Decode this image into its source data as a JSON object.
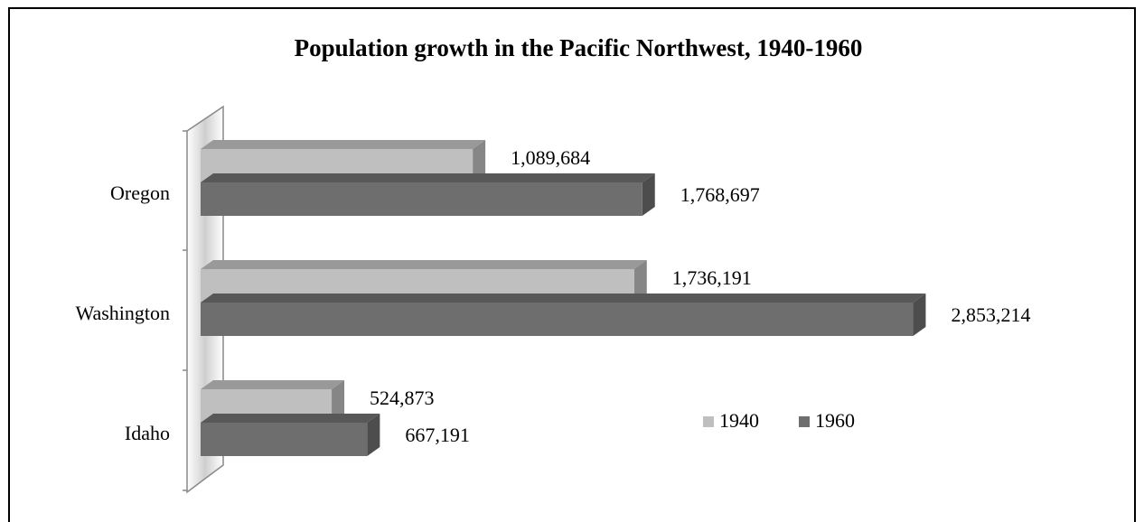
{
  "chart_data": {
    "type": "bar",
    "orientation": "horizontal",
    "title": "Population growth in the Pacific Northwest, 1940-1960",
    "categories": [
      "Oregon",
      "Washington",
      "Idaho"
    ],
    "series": [
      {
        "name": "1940",
        "color": "#bfbfbf",
        "values": [
          1089684,
          1736191,
          524873
        ],
        "value_labels": [
          "1,089,684",
          "1,736,191",
          "524,873"
        ]
      },
      {
        "name": "1960",
        "color": "#6e6e6e",
        "values": [
          1768697,
          2853214,
          667191
        ],
        "value_labels": [
          "1,768,697",
          "2,853,214",
          "667,191"
        ]
      }
    ],
    "xlim": [
      0,
      3000000
    ],
    "legend": "lower right"
  }
}
